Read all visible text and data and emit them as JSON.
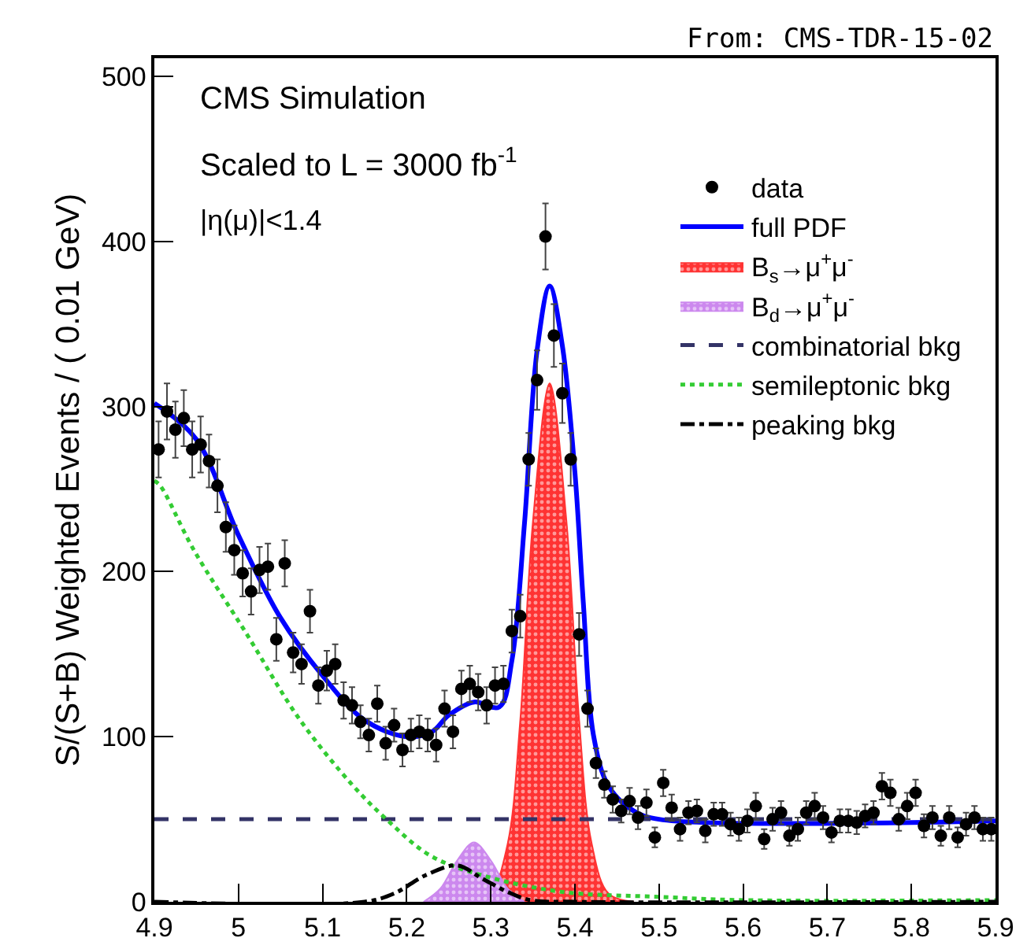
{
  "chart_data": {
    "type": "scatter",
    "ylabel": "S/(S+B) Weighted Events / ( 0.01 GeV)",
    "annotations": [
      "From: CMS-TDR-15-02",
      "CMS Simulation",
      "Scaled to L = 3000 fb$^{-1}$",
      "|η(μ)|<1.4"
    ],
    "xlim": [
      4.9,
      5.9
    ],
    "xticks": [
      4.9,
      5,
      5.1,
      5.2,
      5.3,
      5.4,
      5.5,
      5.6,
      5.7,
      5.8,
      5.9
    ],
    "ylim": [
      0,
      511
    ],
    "yticks": [
      0,
      100,
      200,
      300,
      400,
      500
    ],
    "legend": "top right",
    "series": [
      {
        "name": "data",
        "color": "#000000",
        "marker": "circle",
        "x": [
          4.905,
          4.915,
          4.925,
          4.935,
          4.945,
          4.955,
          4.965,
          4.975,
          4.985,
          4.995,
          5.005,
          5.015,
          5.025,
          5.035,
          5.045,
          5.055,
          5.065,
          5.075,
          5.085,
          5.095,
          5.105,
          5.115,
          5.125,
          5.135,
          5.145,
          5.155,
          5.165,
          5.175,
          5.185,
          5.195,
          5.205,
          5.215,
          5.225,
          5.235,
          5.245,
          5.255,
          5.265,
          5.275,
          5.285,
          5.295,
          5.305,
          5.315,
          5.325,
          5.335,
          5.345,
          5.355,
          5.365,
          5.375,
          5.385,
          5.395,
          5.405,
          5.415,
          5.425,
          5.435,
          5.445,
          5.455,
          5.465,
          5.475,
          5.485,
          5.495,
          5.505,
          5.515,
          5.525,
          5.535,
          5.545,
          5.555,
          5.565,
          5.575,
          5.585,
          5.595,
          5.605,
          5.615,
          5.625,
          5.635,
          5.645,
          5.655,
          5.665,
          5.675,
          5.685,
          5.695,
          5.705,
          5.715,
          5.725,
          5.735,
          5.745,
          5.755,
          5.765,
          5.775,
          5.785,
          5.795,
          5.805,
          5.815,
          5.825,
          5.835,
          5.845,
          5.855,
          5.865,
          5.875,
          5.885,
          5.895
        ],
        "values": [
          274,
          297,
          286,
          293,
          274,
          277,
          267,
          252,
          227,
          213,
          199,
          188,
          201,
          203,
          159,
          205,
          151,
          144,
          176,
          131,
          140,
          144,
          122,
          119,
          109,
          101,
          120,
          96,
          107,
          92,
          101,
          103,
          101,
          95,
          117,
          103,
          129,
          132,
          127,
          119,
          131,
          132,
          164,
          173,
          268,
          316,
          403,
          343,
          308,
          268,
          162,
          117,
          84,
          71,
          62,
          55,
          61,
          51,
          60,
          39,
          72,
          57,
          44,
          54,
          55,
          43,
          53,
          53,
          47,
          44,
          49,
          58,
          38,
          50,
          54,
          40,
          44,
          54,
          58,
          51,
          42,
          49,
          49,
          48,
          52,
          54,
          70,
          66,
          50,
          58,
          66,
          46,
          51,
          40,
          51,
          39,
          47,
          51,
          44,
          44
        ],
        "errors": [
          17,
          17,
          17,
          17,
          17,
          17,
          16,
          16,
          15,
          15,
          14,
          14,
          14,
          14,
          13,
          14,
          12,
          12,
          13,
          11,
          12,
          12,
          11,
          11,
          10,
          10,
          11,
          10,
          10,
          10,
          10,
          10,
          10,
          10,
          11,
          10,
          11,
          11,
          11,
          11,
          11,
          11,
          13,
          13,
          16,
          18,
          20,
          19,
          18,
          16,
          13,
          11,
          9,
          8,
          8,
          7,
          8,
          7,
          8,
          6,
          8,
          8,
          7,
          7,
          7,
          7,
          7,
          7,
          7,
          7,
          7,
          8,
          6,
          7,
          7,
          6,
          7,
          7,
          8,
          7,
          6,
          7,
          7,
          7,
          7,
          7,
          8,
          8,
          7,
          8,
          8,
          7,
          7,
          6,
          7,
          6,
          7,
          7,
          7,
          7
        ]
      },
      {
        "name": "full PDF",
        "type": "line",
        "color": "#0000ff",
        "line_style": "solid",
        "x": [
          4.9,
          4.95,
          5.0,
          5.05,
          5.1,
          5.15,
          5.2,
          5.23,
          5.25,
          5.28,
          5.31,
          5.325,
          5.34,
          5.355,
          5.37,
          5.385,
          5.4,
          5.41,
          5.422,
          5.44,
          5.47,
          5.5,
          5.9
        ],
        "values": [
          302,
          280,
          222,
          172,
          137,
          110,
          100,
          103,
          113,
          121,
          118,
          146,
          229,
          334,
          373,
          337,
          260,
          181,
          101,
          70,
          55,
          50,
          49
        ]
      },
      {
        "name": "B$_{s}$→μ$^{+}$μ$^{-}$",
        "type": "area",
        "color": "#ff3333",
        "x": [
          5.28,
          5.3,
          5.32,
          5.335,
          5.35,
          5.37,
          5.39,
          5.405,
          5.42,
          5.44,
          5.47
        ],
        "values": [
          0,
          5,
          35,
          110,
          230,
          314,
          230,
          110,
          35,
          5,
          0
        ]
      },
      {
        "name": "B$_{d}$→μ$^{+}$μ$^{-}$",
        "type": "area",
        "color": "#cc88ee",
        "x": [
          5.22,
          5.24,
          5.26,
          5.28,
          5.3,
          5.32,
          5.34
        ],
        "values": [
          0,
          8,
          25,
          36,
          25,
          8,
          0
        ]
      },
      {
        "name": "combinatorial bkg",
        "type": "line",
        "color": "#333366",
        "line_style": "dashed",
        "x": [
          4.9,
          5.9
        ],
        "values": [
          50,
          50
        ]
      },
      {
        "name": "semileptonic bkg",
        "type": "line",
        "color": "#33cc33",
        "line_style": "dotted",
        "x": [
          4.9,
          4.907,
          4.947,
          5.01,
          5.072,
          5.135,
          5.178,
          5.228,
          5.29,
          5.385,
          5.5,
          5.6,
          5.9
        ],
        "values": [
          255,
          252,
          213,
          162,
          111,
          71,
          49,
          28,
          16,
          6,
          3,
          1,
          1
        ]
      },
      {
        "name": "peaking bkg",
        "type": "line",
        "color": "#000000",
        "line_style": "dashdot",
        "x": [
          4.9,
          5.15,
          5.185,
          5.222,
          5.26,
          5.29,
          5.32,
          5.347,
          5.4,
          5.9
        ],
        "values": [
          0,
          0,
          5,
          16,
          22,
          14,
          6,
          1,
          0,
          0
        ]
      }
    ]
  }
}
